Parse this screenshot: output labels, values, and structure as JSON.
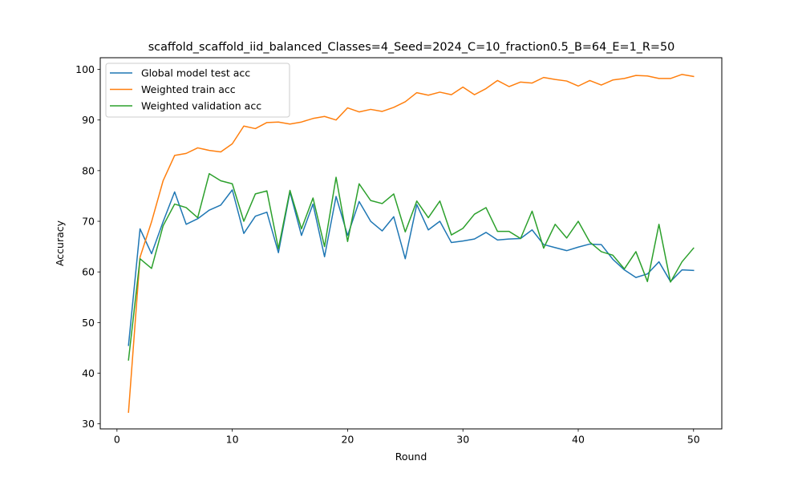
{
  "chart_data": {
    "type": "line",
    "title": "scaffold_scaffold_iid_balanced_Classes=4_Seed=2024_C=10_fraction0.5_B=64_E=1_R=50",
    "xlabel": "Round",
    "ylabel": "Accuracy",
    "xlim": [
      -1.45,
      52.45
    ],
    "ylim": [
      29.0,
      102.3
    ],
    "xticks": [
      0,
      10,
      20,
      30,
      40,
      50
    ],
    "yticks": [
      30,
      40,
      50,
      60,
      70,
      80,
      90,
      100
    ],
    "grid": false,
    "legend_position": "top-left",
    "x": [
      1,
      2,
      3,
      4,
      5,
      6,
      7,
      8,
      9,
      10,
      11,
      12,
      13,
      14,
      15,
      16,
      17,
      18,
      19,
      20,
      21,
      22,
      23,
      24,
      25,
      26,
      27,
      28,
      29,
      30,
      31,
      32,
      33,
      34,
      35,
      36,
      37,
      38,
      39,
      40,
      41,
      42,
      43,
      44,
      45,
      46,
      47,
      48,
      49,
      50
    ],
    "series": [
      {
        "name": "Global model test acc",
        "color": "#1f77b4",
        "values": [
          45.5,
          68.5,
          63.6,
          69.9,
          75.8,
          69.4,
          70.5,
          72.2,
          73.2,
          76.2,
          67.6,
          71.0,
          71.8,
          63.8,
          75.8,
          67.2,
          73.4,
          63.0,
          74.9,
          67.2,
          73.9,
          70.0,
          68.1,
          70.9,
          62.6,
          73.3,
          68.3,
          70.0,
          65.8,
          66.1,
          66.5,
          67.8,
          66.3,
          66.5,
          66.6,
          68.3,
          65.4,
          64.8,
          64.2,
          64.9,
          65.5,
          65.4,
          62.5,
          60.4,
          58.9,
          59.6,
          62.0,
          58.1,
          60.4,
          60.3
        ]
      },
      {
        "name": "Weighted train acc",
        "color": "#ff7f0e",
        "values": [
          32.3,
          62.9,
          69.9,
          78.0,
          83.0,
          83.4,
          84.5,
          84.0,
          83.7,
          85.3,
          88.8,
          88.3,
          89.5,
          89.6,
          89.2,
          89.6,
          90.3,
          90.7,
          90.0,
          92.4,
          91.6,
          92.1,
          91.7,
          92.5,
          93.6,
          95.4,
          94.9,
          95.5,
          95.0,
          96.5,
          95.0,
          96.2,
          97.8,
          96.6,
          97.5,
          97.3,
          98.4,
          98.0,
          97.7,
          96.7,
          97.8,
          96.9,
          97.9,
          98.2,
          98.8,
          98.7,
          98.2,
          98.2,
          99.0,
          98.6
        ]
      },
      {
        "name": "Weighted validation acc",
        "color": "#2ca02c",
        "values": [
          42.6,
          62.6,
          60.7,
          69.1,
          73.4,
          72.7,
          70.7,
          79.4,
          78.0,
          77.4,
          70.0,
          75.4,
          76.0,
          64.6,
          76.1,
          68.5,
          74.6,
          65.0,
          78.7,
          66.0,
          77.4,
          74.1,
          73.5,
          75.4,
          67.9,
          74.0,
          70.7,
          74.0,
          67.3,
          68.6,
          71.4,
          72.7,
          68.0,
          68.0,
          66.6,
          72.0,
          64.7,
          69.4,
          66.7,
          70.0,
          65.9,
          64.0,
          63.3,
          60.6,
          64.0,
          58.1,
          69.4,
          58.0,
          62.0,
          64.7
        ]
      }
    ]
  }
}
